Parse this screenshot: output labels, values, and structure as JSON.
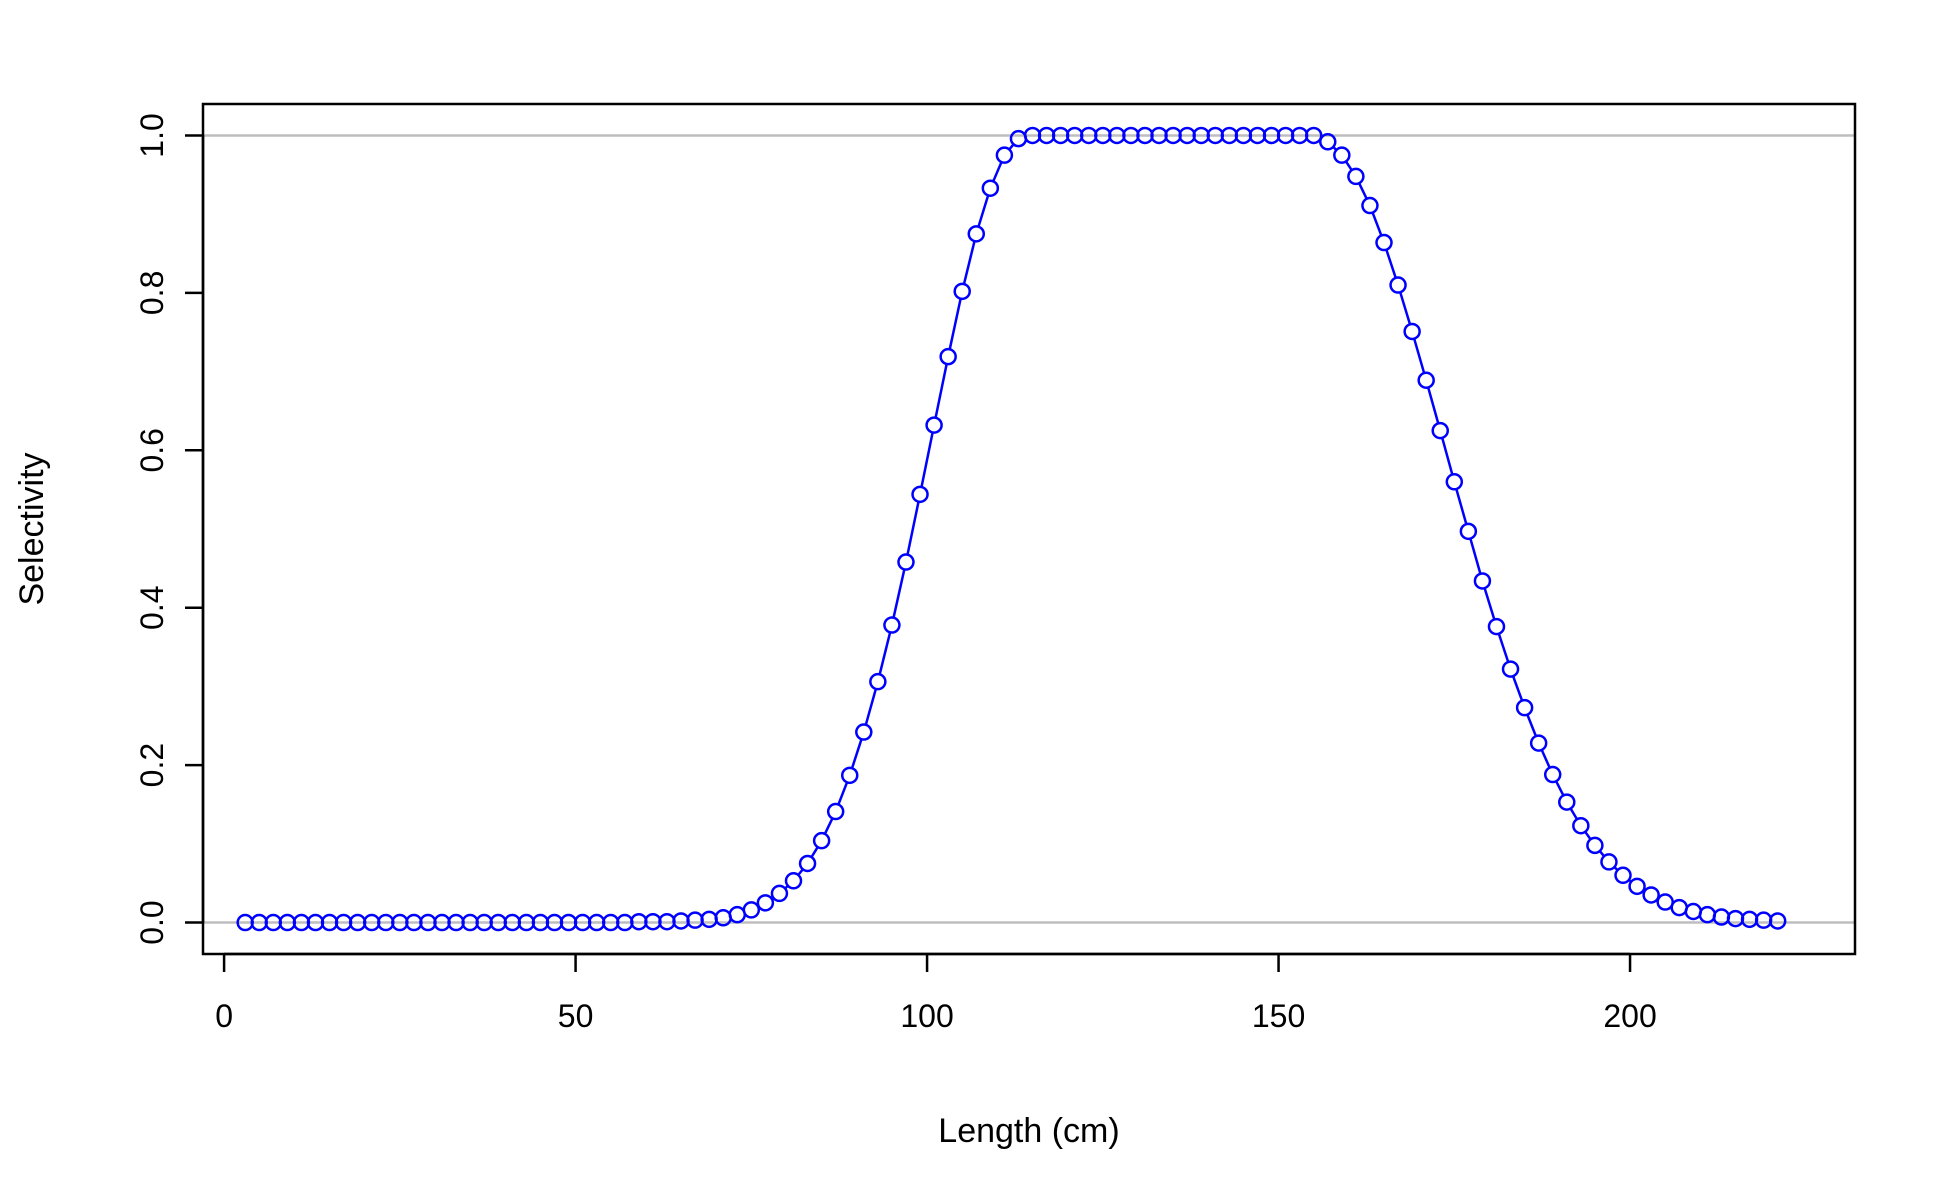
{
  "chart_data": {
    "type": "line",
    "title": "",
    "xlabel": "Length (cm)",
    "ylabel": "Selectivity",
    "xlim": [
      -3,
      232
    ],
    "ylim": [
      -0.04,
      1.04
    ],
    "xticks": [
      0,
      50,
      100,
      150,
      200
    ],
    "xtick_labels": [
      "0",
      "50",
      "100",
      "150",
      "200"
    ],
    "yticks": [
      0.0,
      0.2,
      0.4,
      0.6,
      0.8,
      1.0
    ],
    "ytick_labels": [
      "0.0",
      "0.2",
      "0.4",
      "0.6",
      "0.8",
      "1.0"
    ],
    "reference_lines_y": [
      0.0,
      1.0
    ],
    "grid": false,
    "legend": "none",
    "colors": {
      "series": "#0000ff",
      "reference": "#bebebe",
      "axes": "#000000"
    },
    "series": [
      {
        "marker": "open-circle",
        "x": [
          3,
          5,
          7,
          9,
          11,
          13,
          15,
          17,
          19,
          21,
          23,
          25,
          27,
          29,
          31,
          33,
          35,
          37,
          39,
          41,
          43,
          45,
          47,
          49,
          51,
          53,
          55,
          57,
          59,
          61,
          63,
          65,
          67,
          69,
          71,
          73,
          75,
          77,
          79,
          81,
          83,
          85,
          87,
          89,
          91,
          93,
          95,
          97,
          99,
          101,
          103,
          105,
          107,
          109,
          111,
          113,
          115,
          117,
          119,
          121,
          123,
          125,
          127,
          129,
          131,
          133,
          135,
          137,
          139,
          141,
          143,
          145,
          147,
          149,
          151,
          153,
          155,
          157,
          159,
          161,
          163,
          165,
          167,
          169,
          171,
          173,
          175,
          177,
          179,
          181,
          183,
          185,
          187,
          189,
          191,
          193,
          195,
          197,
          199,
          201,
          203,
          205,
          207,
          209,
          211,
          213,
          215,
          217,
          219,
          221
        ],
        "values": [
          0,
          0,
          0,
          0,
          0,
          0,
          0,
          0,
          0,
          0,
          0,
          0,
          0,
          0,
          0,
          0,
          0,
          0,
          0,
          0,
          0,
          0,
          0,
          0,
          0,
          0,
          0,
          0,
          0.001,
          0.001,
          0.001,
          0.002,
          0.003,
          0.004,
          0.006,
          0.01,
          0.016,
          0.025,
          0.037,
          0.053,
          0.075,
          0.104,
          0.141,
          0.187,
          0.242,
          0.306,
          0.378,
          0.458,
          0.544,
          0.632,
          0.719,
          0.802,
          0.875,
          0.933,
          0.975,
          0.996,
          1,
          1,
          1,
          1,
          1,
          1,
          1,
          1,
          1,
          1,
          1,
          1,
          1,
          1,
          1,
          1,
          1,
          1,
          1,
          1,
          1,
          0.992,
          0.975,
          0.948,
          0.911,
          0.864,
          0.81,
          0.751,
          0.689,
          0.625,
          0.56,
          0.497,
          0.434,
          0.376,
          0.322,
          0.273,
          0.228,
          0.188,
          0.153,
          0.123,
          0.098,
          0.077,
          0.06,
          0.046,
          0.035,
          0.026,
          0.019,
          0.014,
          0.01,
          0.007,
          0.005,
          0.004,
          0.003,
          0.002
        ]
      }
    ]
  }
}
